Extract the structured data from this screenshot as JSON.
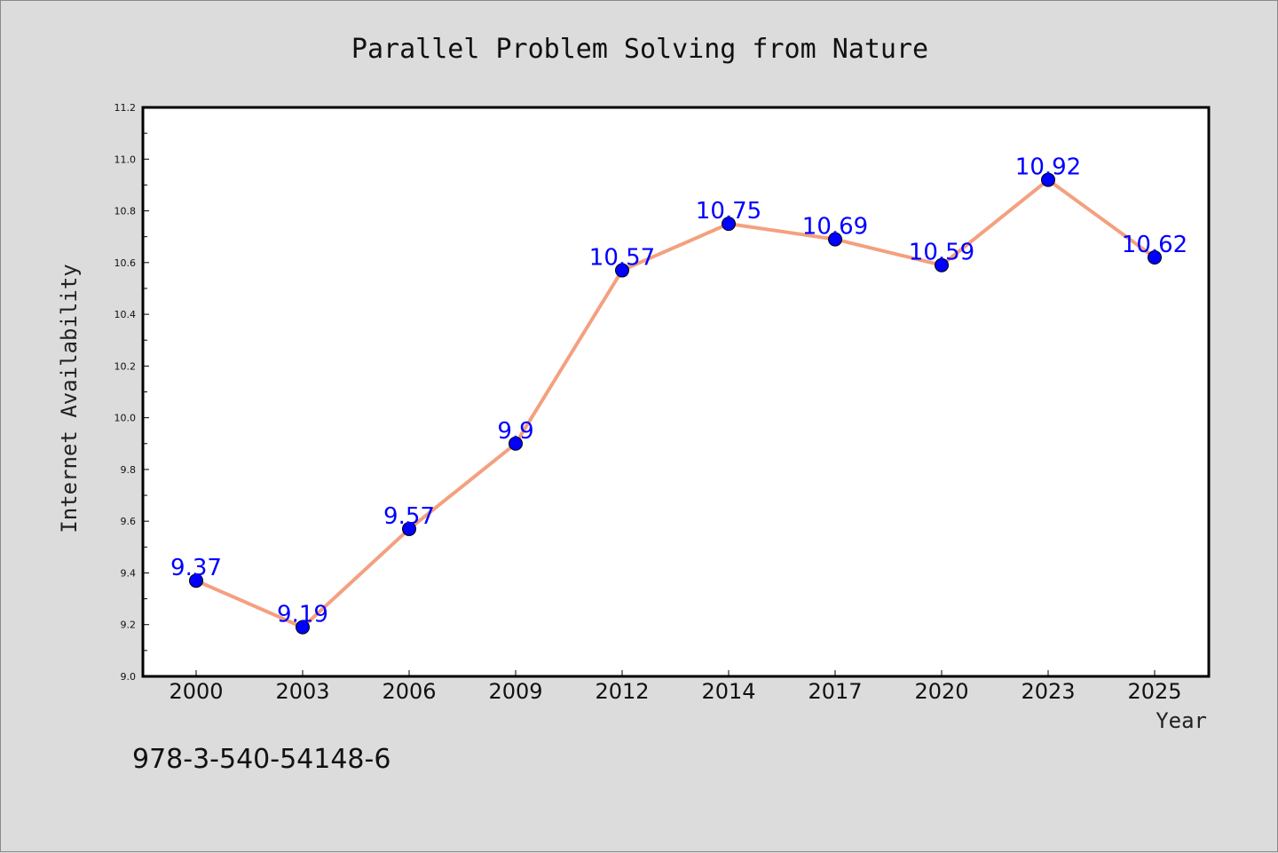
{
  "footnote": "978-3-540-54148-6",
  "chart_data": {
    "type": "line",
    "title": "Parallel Problem Solving from Nature",
    "xlabel": "Year",
    "ylabel": "Internet Availability",
    "categories": [
      "2000",
      "2003",
      "2006",
      "2009",
      "2012",
      "2014",
      "2017",
      "2020",
      "2023",
      "2025"
    ],
    "series": [
      {
        "values": [
          9.37,
          9.19,
          9.57,
          9.9,
          10.57,
          10.75,
          10.69,
          10.59,
          10.92,
          10.62
        ],
        "data_labels": [
          "9.37",
          "9.19",
          "9.57",
          "9.9",
          "10.57",
          "10.75",
          "10.69",
          "10.59",
          "10.92",
          "10.62"
        ],
        "line_color": "#f4a07f",
        "marker_color": "#0000ff"
      }
    ],
    "ylim": [
      9.0,
      11.2
    ],
    "yticks": [
      "9.0",
      "9.2",
      "9.4",
      "9.6",
      "9.8",
      "10.0",
      "10.2",
      "10.4",
      "10.6",
      "10.8",
      "11.0",
      "11.2"
    ],
    "grid": false,
    "legend": "none",
    "colors": {
      "background": "#dcdcdc",
      "plot_background": "#ffffff",
      "label_color": "#0000ff"
    }
  }
}
